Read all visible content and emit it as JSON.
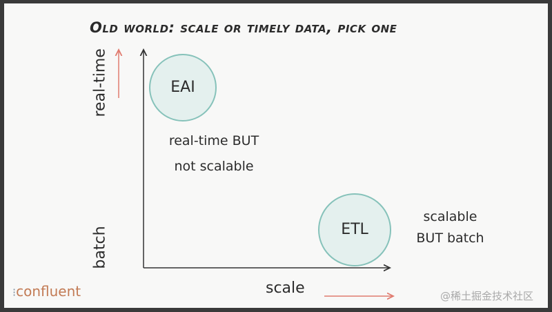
{
  "title": "Old world: scale or timely data, pick one",
  "axes": {
    "y_top_label": "real-time",
    "y_bottom_label": "batch",
    "x_label": "scale"
  },
  "nodes": [
    {
      "label": "EAI",
      "caption_line1": "real-time BUT",
      "caption_line2": "not scalable"
    },
    {
      "label": "ETL",
      "caption_line1": "scalable",
      "caption_line2": "BUT batch"
    }
  ],
  "logo": {
    "text": "confluent"
  },
  "watermark": "@稀土掘金技术社区",
  "colors": {
    "circle_fill": "#e4f0ee",
    "circle_stroke": "#86c2ba",
    "arrow_accent": "#e07a6e",
    "logo": "#c27b55"
  }
}
